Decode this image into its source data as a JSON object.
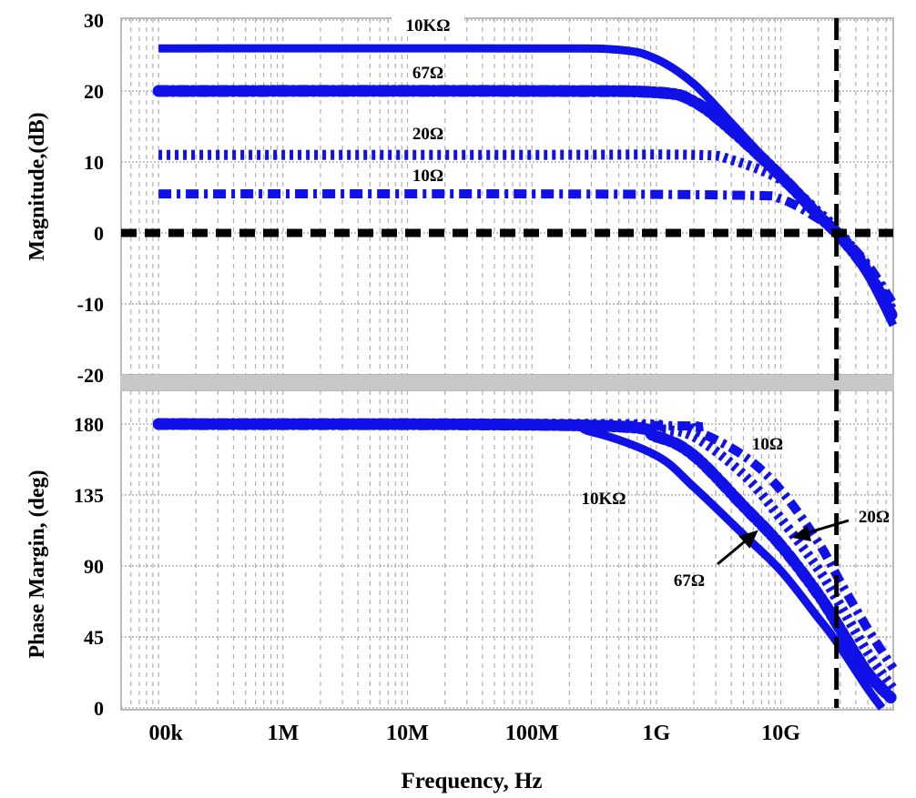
{
  "chart_data": [
    {
      "type": "line",
      "title": "",
      "ylabel": "Magnitude,(dB)",
      "xlabel": "",
      "xscale": "log",
      "xlim_hz": [
        50000,
        80000000000
      ],
      "ylim": [
        -20,
        30
      ],
      "yticks": [
        30,
        20,
        10,
        0,
        -10,
        -20
      ],
      "grid": true,
      "reference_lines": {
        "horizontal_db": 0,
        "vertical_hz": 28000000000
      },
      "series": [
        {
          "name": "10KΩ",
          "style": "solid",
          "x": [
            100000.0,
            100000000.0,
            500000000.0,
            1000000000.0,
            2000000000.0,
            4000000000.0,
            10000000000.0,
            20000000000.0,
            30000000000.0,
            50000000000.0,
            80000000000.0
          ],
          "y": [
            26,
            26,
            25.8,
            24.5,
            21,
            15.5,
            8,
            2.5,
            -0.5,
            -6,
            -13
          ]
        },
        {
          "name": "67Ω",
          "style": "dash-dot-heavy",
          "x": [
            100000.0,
            100000000.0,
            1000000000.0,
            2000000000.0,
            4000000000.0,
            10000000000.0,
            20000000000.0,
            30000000000.0,
            50000000000.0,
            80000000000.0
          ],
          "y": [
            20,
            20,
            19.8,
            18.5,
            14.5,
            8,
            2.5,
            -0.5,
            -5.5,
            -12
          ]
        },
        {
          "name": "20Ω",
          "style": "dotted",
          "x": [
            100000.0,
            100000000.0,
            2000000000.0,
            4000000000.0,
            10000000000.0,
            20000000000.0,
            30000000000.0,
            50000000000.0,
            80000000000.0
          ],
          "y": [
            11,
            11,
            11,
            10.3,
            7.5,
            3,
            0,
            -5,
            -11
          ]
        },
        {
          "name": "10Ω",
          "style": "dash-dot",
          "x": [
            100000.0,
            100000000.0,
            5000000000.0,
            10000000000.0,
            20000000000.0,
            30000000000.0,
            50000000000.0,
            80000000000.0
          ],
          "y": [
            5.5,
            5.5,
            5.3,
            4.8,
            2,
            -0.3,
            -4.5,
            -10
          ]
        }
      ],
      "annotations": [
        "10KΩ",
        "67Ω",
        "20Ω",
        "10Ω"
      ]
    },
    {
      "type": "line",
      "title": "",
      "ylabel": "Phase Margin, (deg)",
      "xlabel": "Frequency, Hz",
      "xscale": "log",
      "xlim_hz": [
        50000,
        80000000000
      ],
      "ylim": [
        0,
        200
      ],
      "yticks": [
        180,
        135,
        90,
        45,
        0
      ],
      "xticks": [
        "00k",
        "1M",
        "10M",
        "100M",
        "1G",
        "10G"
      ],
      "xtick_hz": [
        100000.0,
        1000000.0,
        10000000.0,
        100000000.0,
        1000000000.0,
        10000000000.0
      ],
      "grid": true,
      "reference_lines": {
        "vertical_hz": 28000000000
      },
      "series": [
        {
          "name": "10KΩ",
          "style": "solid",
          "x": [
            100000.0,
            100000000.0,
            300000000.0,
            1000000000.0,
            2000000000.0,
            5000000000.0,
            10000000000.0,
            20000000000.0,
            28000000000.0,
            50000000000.0,
            65000000000.0
          ],
          "y": [
            180,
            179,
            175,
            160,
            140,
            110,
            87,
            57,
            42,
            12,
            0
          ]
        },
        {
          "name": "67Ω",
          "style": "dash-dot-heavy",
          "x": [
            100000.0,
            300000000.0,
            1000000000.0,
            2000000000.0,
            5000000000.0,
            10000000000.0,
            20000000000.0,
            30000000000.0,
            50000000000.0,
            80000000000.0
          ],
          "y": [
            180,
            179,
            172,
            160,
            128,
            103,
            72,
            50,
            22,
            5
          ]
        },
        {
          "name": "20Ω",
          "style": "dotted",
          "x": [
            100000.0,
            500000000.0,
            1000000000.0,
            2000000000.0,
            5000000000.0,
            10000000000.0,
            20000000000.0,
            30000000000.0,
            50000000000.0,
            80000000000.0
          ],
          "y": [
            180,
            180,
            177,
            172,
            148,
            120,
            88,
            65,
            35,
            12
          ]
        },
        {
          "name": "10Ω",
          "style": "dash-dot",
          "x": [
            100000.0,
            1000000000.0,
            2000000000.0,
            5000000000.0,
            10000000000.0,
            20000000000.0,
            30000000000.0,
            50000000000.0,
            80000000000.0
          ],
          "y": [
            180,
            179,
            176,
            160,
            138,
            105,
            80,
            50,
            25
          ]
        }
      ],
      "annotations": [
        "10Ω",
        "10KΩ",
        "67Ω",
        "20Ω"
      ]
    }
  ],
  "colors": {
    "series": "#1010e8",
    "reference": "#000000",
    "grid": "#b0b0b0",
    "separator": "#c8c8c8"
  }
}
